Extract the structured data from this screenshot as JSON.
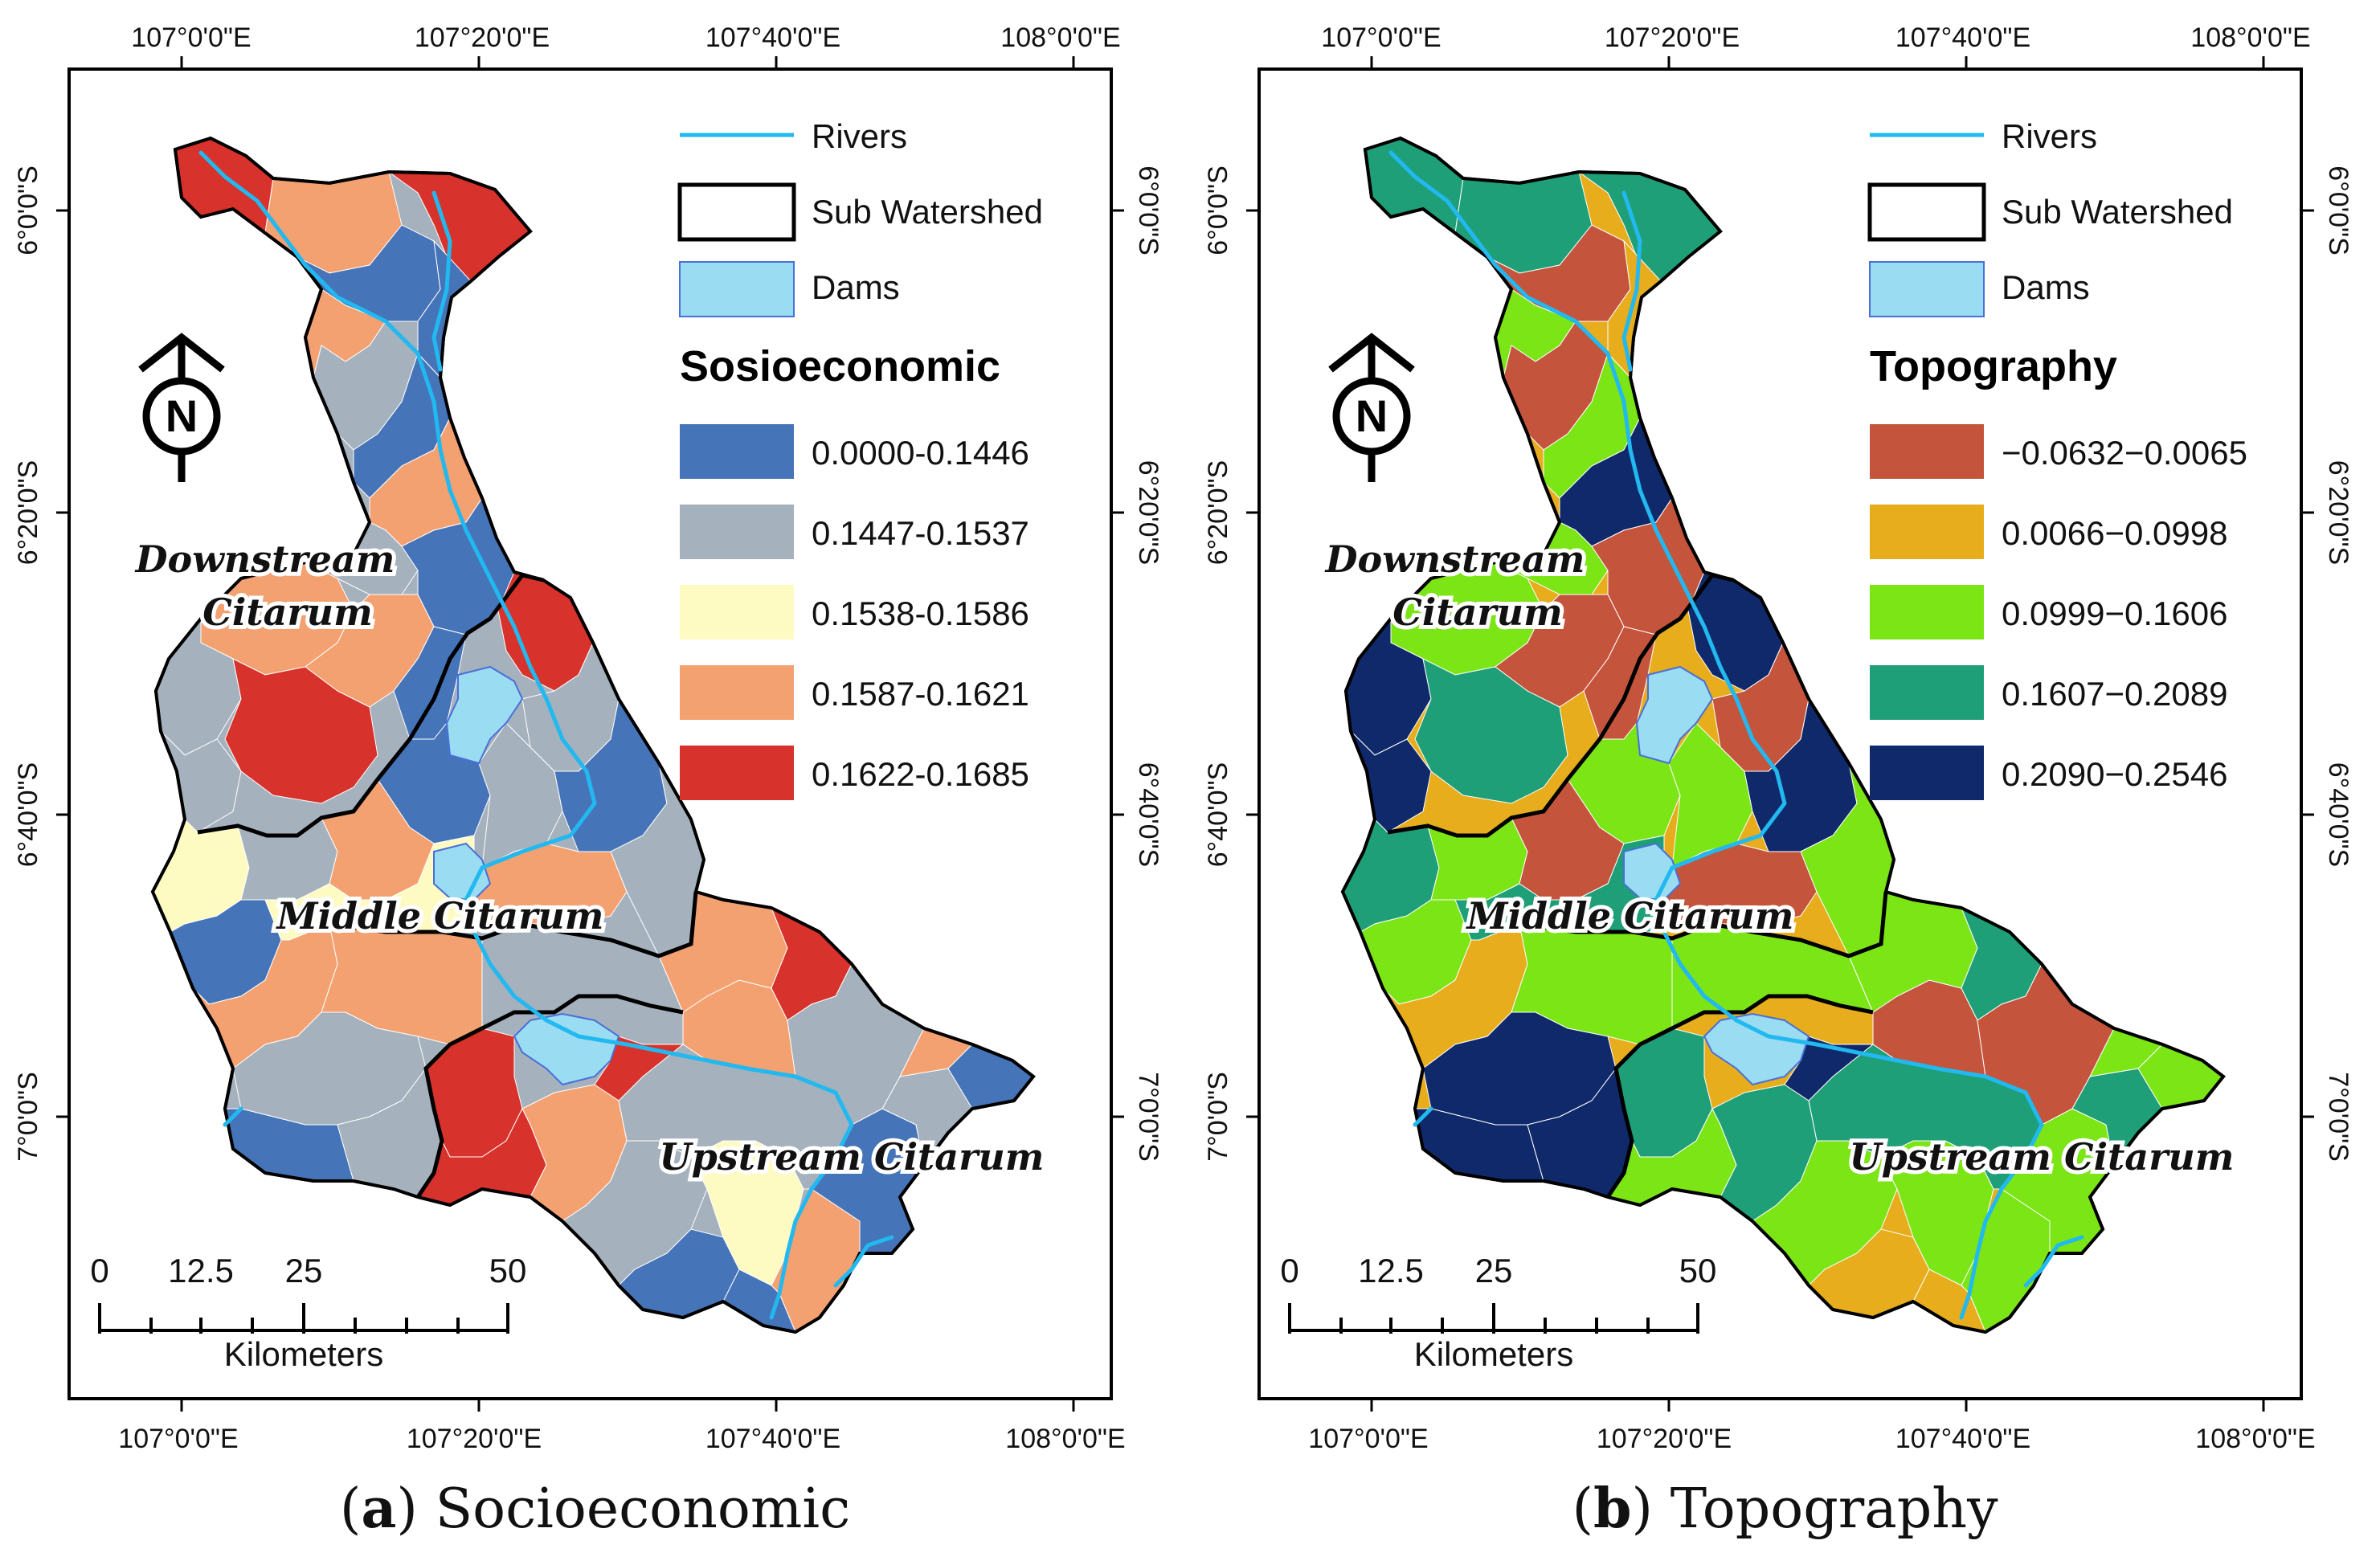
{
  "colors": {
    "river": "#22b8f0",
    "dam_fill": "#9adcf2",
    "dam_stroke": "#4a6fd8",
    "boundary": "#000000"
  },
  "panels": [
    {
      "id": "a",
      "caption_letter": "a",
      "caption_text": "Socioeconomic",
      "top_lon_labels": [
        "107°0'0\"E",
        "107°20'0\"E",
        "107°40'0\"E",
        "108°0'0\"E"
      ],
      "bottom_lon_labels": [
        "107°0'0\"E",
        "107°20'0\"E",
        "107°40'0\"E",
        "108°0'0\"E"
      ],
      "left_lat_labels": [
        "6°0'0\"S",
        "6°20'0\"S",
        "6°40'0\"S",
        "7°0'0\"S"
      ],
      "right_lat_labels": [
        "6°0'0\"S",
        "6°20'0\"S",
        "6°40'0\"S",
        "7°0'0\"S"
      ],
      "legend": {
        "rivers": "Rivers",
        "sub_watershed": "Sub Watershed",
        "dams": "Dams",
        "title": "Sosioeconomic",
        "classes": [
          {
            "label": "0.0000-0.1446",
            "color": "#4674b8"
          },
          {
            "label": "0.1447-0.1537",
            "color": "#a5b1bc"
          },
          {
            "label": "0.1538-0.1586",
            "color": "#fefbc2"
          },
          {
            "label": "0.1587-0.1621",
            "color": "#f4a172"
          },
          {
            "label": "0.1622-0.1685",
            "color": "#d7322b"
          }
        ]
      },
      "region_labels": {
        "downstream_1": "Downstream",
        "downstream_2": "Citarum",
        "middle": "Middle Citarum",
        "upstream": "Upstream Citarum"
      },
      "scale": {
        "ticks": [
          "0",
          "12.5",
          "25",
          "50"
        ],
        "unit": "Kilometers"
      },
      "north": "N"
    },
    {
      "id": "b",
      "caption_letter": "b",
      "caption_text": "Topography",
      "top_lon_labels": [
        "107°0'0\"E",
        "107°20'0\"E",
        "107°40'0\"E",
        "108°0'0\"E"
      ],
      "bottom_lon_labels": [
        "107°0'0\"E",
        "107°20'0\"E",
        "107°40'0\"E",
        "108°0'0\"E"
      ],
      "left_lat_labels": [
        "6°0'0\"S",
        "6°20'0\"S",
        "6°40'0\"S",
        "7°0'0\"S"
      ],
      "right_lat_labels": [
        "6°0'0\"S",
        "6°20'0\"S",
        "6°40'0\"S",
        "7°0'0\"S"
      ],
      "legend": {
        "rivers": "Rivers",
        "sub_watershed": "Sub Watershed",
        "dams": "Dams",
        "title": "Topography",
        "classes": [
          {
            "label": "−0.0632−0.0065",
            "color": "#c4553c"
          },
          {
            "label": "0.0066−0.0998",
            "color": "#e7ad1c"
          },
          {
            "label": "0.0999−0.1606",
            "color": "#7be516"
          },
          {
            "label": "0.1607−0.2089",
            "color": "#1f9f78"
          },
          {
            "label": "0.2090−0.2546",
            "color": "#10296b"
          }
        ]
      },
      "region_labels": {
        "downstream_1": "Downstream",
        "downstream_2": "Citarum",
        "middle": "Middle Citarum",
        "upstream": "Upstream Citarum"
      },
      "scale": {
        "ticks": [
          "0",
          "12.5",
          "25",
          "50"
        ],
        "unit": "Kilometers"
      },
      "north": "N"
    }
  ]
}
